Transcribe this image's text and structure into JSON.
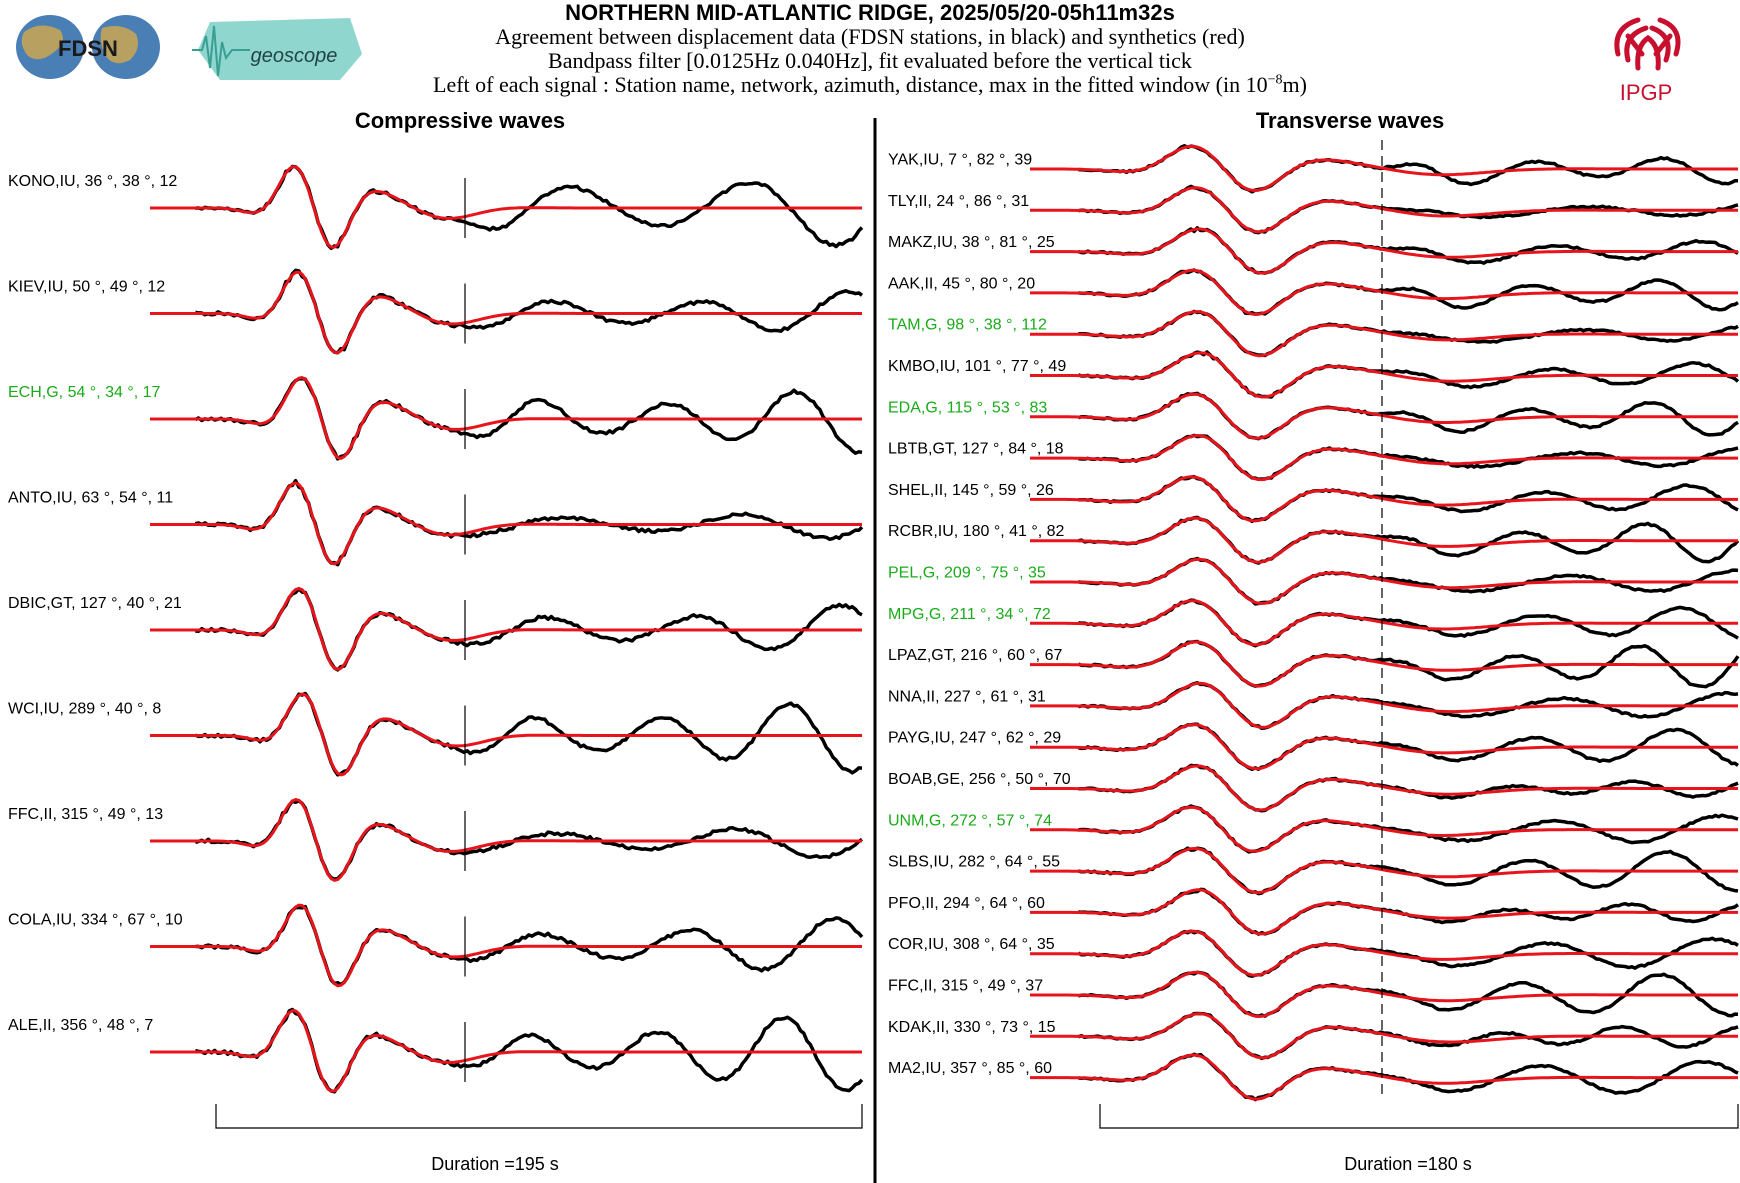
{
  "header": {
    "title": "NORTHERN MID-ATLANTIC RIDGE, 2025/05/20-05h11m32s",
    "line1": "Agreement between displacement data (FDSN stations, in black) and synthetics (red)",
    "line2": "Bandpass filter [0.0125Hz 0.040Hz], fit evaluated before the vertical tick",
    "line3_prefix": "Left of each signal : Station name, network, azimuth, distance, max in the fitted window (in 10",
    "line3_exp": "−8",
    "line3_suffix": "m)"
  },
  "logos": {
    "fdsn": "FDSN",
    "geoscope": "geoscope",
    "ipgp": "IPGP"
  },
  "colors": {
    "data": "#000000",
    "synthetic": "#e8141b",
    "highlight": "#1aab1a",
    "ipgp_red": "#c8102e",
    "map_blue": "#4a7fb5",
    "geoscope_teal": "#8fd6cf"
  },
  "chart_data": [
    {
      "type": "line",
      "title": "Compressive waves",
      "duration_label": "Duration =195 s",
      "series_meaning": [
        "data (black)",
        "synthetics (red)"
      ],
      "traces": [
        {
          "label": "KONO,IU, 36 °, 38 °, 12",
          "highlight": false
        },
        {
          "label": "KIEV,IU, 50 °, 49 °, 12",
          "highlight": false
        },
        {
          "label": "ECH,G, 54 °, 34 °, 17",
          "highlight": true
        },
        {
          "label": "ANTO,IU, 63 °, 54 °, 11",
          "highlight": false
        },
        {
          "label": "DBIC,GT, 127 °, 40 °, 21",
          "highlight": false
        },
        {
          "label": "WCI,IU, 289 °, 40 °, 8",
          "highlight": false
        },
        {
          "label": "FFC,II, 315 °, 49 °, 13",
          "highlight": false
        },
        {
          "label": "COLA,IU, 334 °, 67 °, 10",
          "highlight": false
        },
        {
          "label": "ALE,II, 356 °, 48 °, 7",
          "highlight": false
        }
      ]
    },
    {
      "type": "line",
      "title": "Transverse waves",
      "duration_label": "Duration =180 s",
      "series_meaning": [
        "data (black)",
        "synthetics (red)"
      ],
      "traces": [
        {
          "label": "YAK,IU, 7 °, 82 °, 39",
          "highlight": false
        },
        {
          "label": "TLY,II, 24 °, 86 °, 31",
          "highlight": false
        },
        {
          "label": "MAKZ,IU, 38 °, 81 °, 25",
          "highlight": false
        },
        {
          "label": "AAK,II, 45 °, 80 °, 20",
          "highlight": false
        },
        {
          "label": "TAM,G, 98 °, 38 °, 112",
          "highlight": true
        },
        {
          "label": "KMBO,IU, 101 °, 77 °, 49",
          "highlight": false
        },
        {
          "label": "EDA,G, 115 °, 53 °, 83",
          "highlight": true
        },
        {
          "label": "LBTB,GT, 127 °, 84 °, 18",
          "highlight": false
        },
        {
          "label": "SHEL,II, 145 °, 59 °, 26",
          "highlight": false
        },
        {
          "label": "RCBR,IU, 180 °, 41 °, 82",
          "highlight": false
        },
        {
          "label": "PEL,G, 209 °, 75 °, 35",
          "highlight": true
        },
        {
          "label": "MPG,G, 211 °, 34 °, 72",
          "highlight": true
        },
        {
          "label": "LPAZ,GT, 216 °, 60 °, 67",
          "highlight": false
        },
        {
          "label": "NNA,II, 227 °, 61 °, 31",
          "highlight": false
        },
        {
          "label": "PAYG,IU, 247 °, 62 °, 29",
          "highlight": false
        },
        {
          "label": "BOAB,GE, 256 °, 50 °, 70",
          "highlight": false
        },
        {
          "label": "UNM,G, 272 °, 57 °, 74",
          "highlight": true
        },
        {
          "label": "SLBS,IU, 282 °, 64 °, 55",
          "highlight": false
        },
        {
          "label": "PFO,II, 294 °, 64 °, 60",
          "highlight": false
        },
        {
          "label": "COR,IU, 308 °, 64 °, 35",
          "highlight": false
        },
        {
          "label": "FFC,II, 315 °, 49 °, 37",
          "highlight": false
        },
        {
          "label": "KDAK,II, 330 °, 73 °, 15",
          "highlight": false
        },
        {
          "label": "MA2,IU, 357 °, 85 °, 60",
          "highlight": false
        }
      ]
    }
  ]
}
